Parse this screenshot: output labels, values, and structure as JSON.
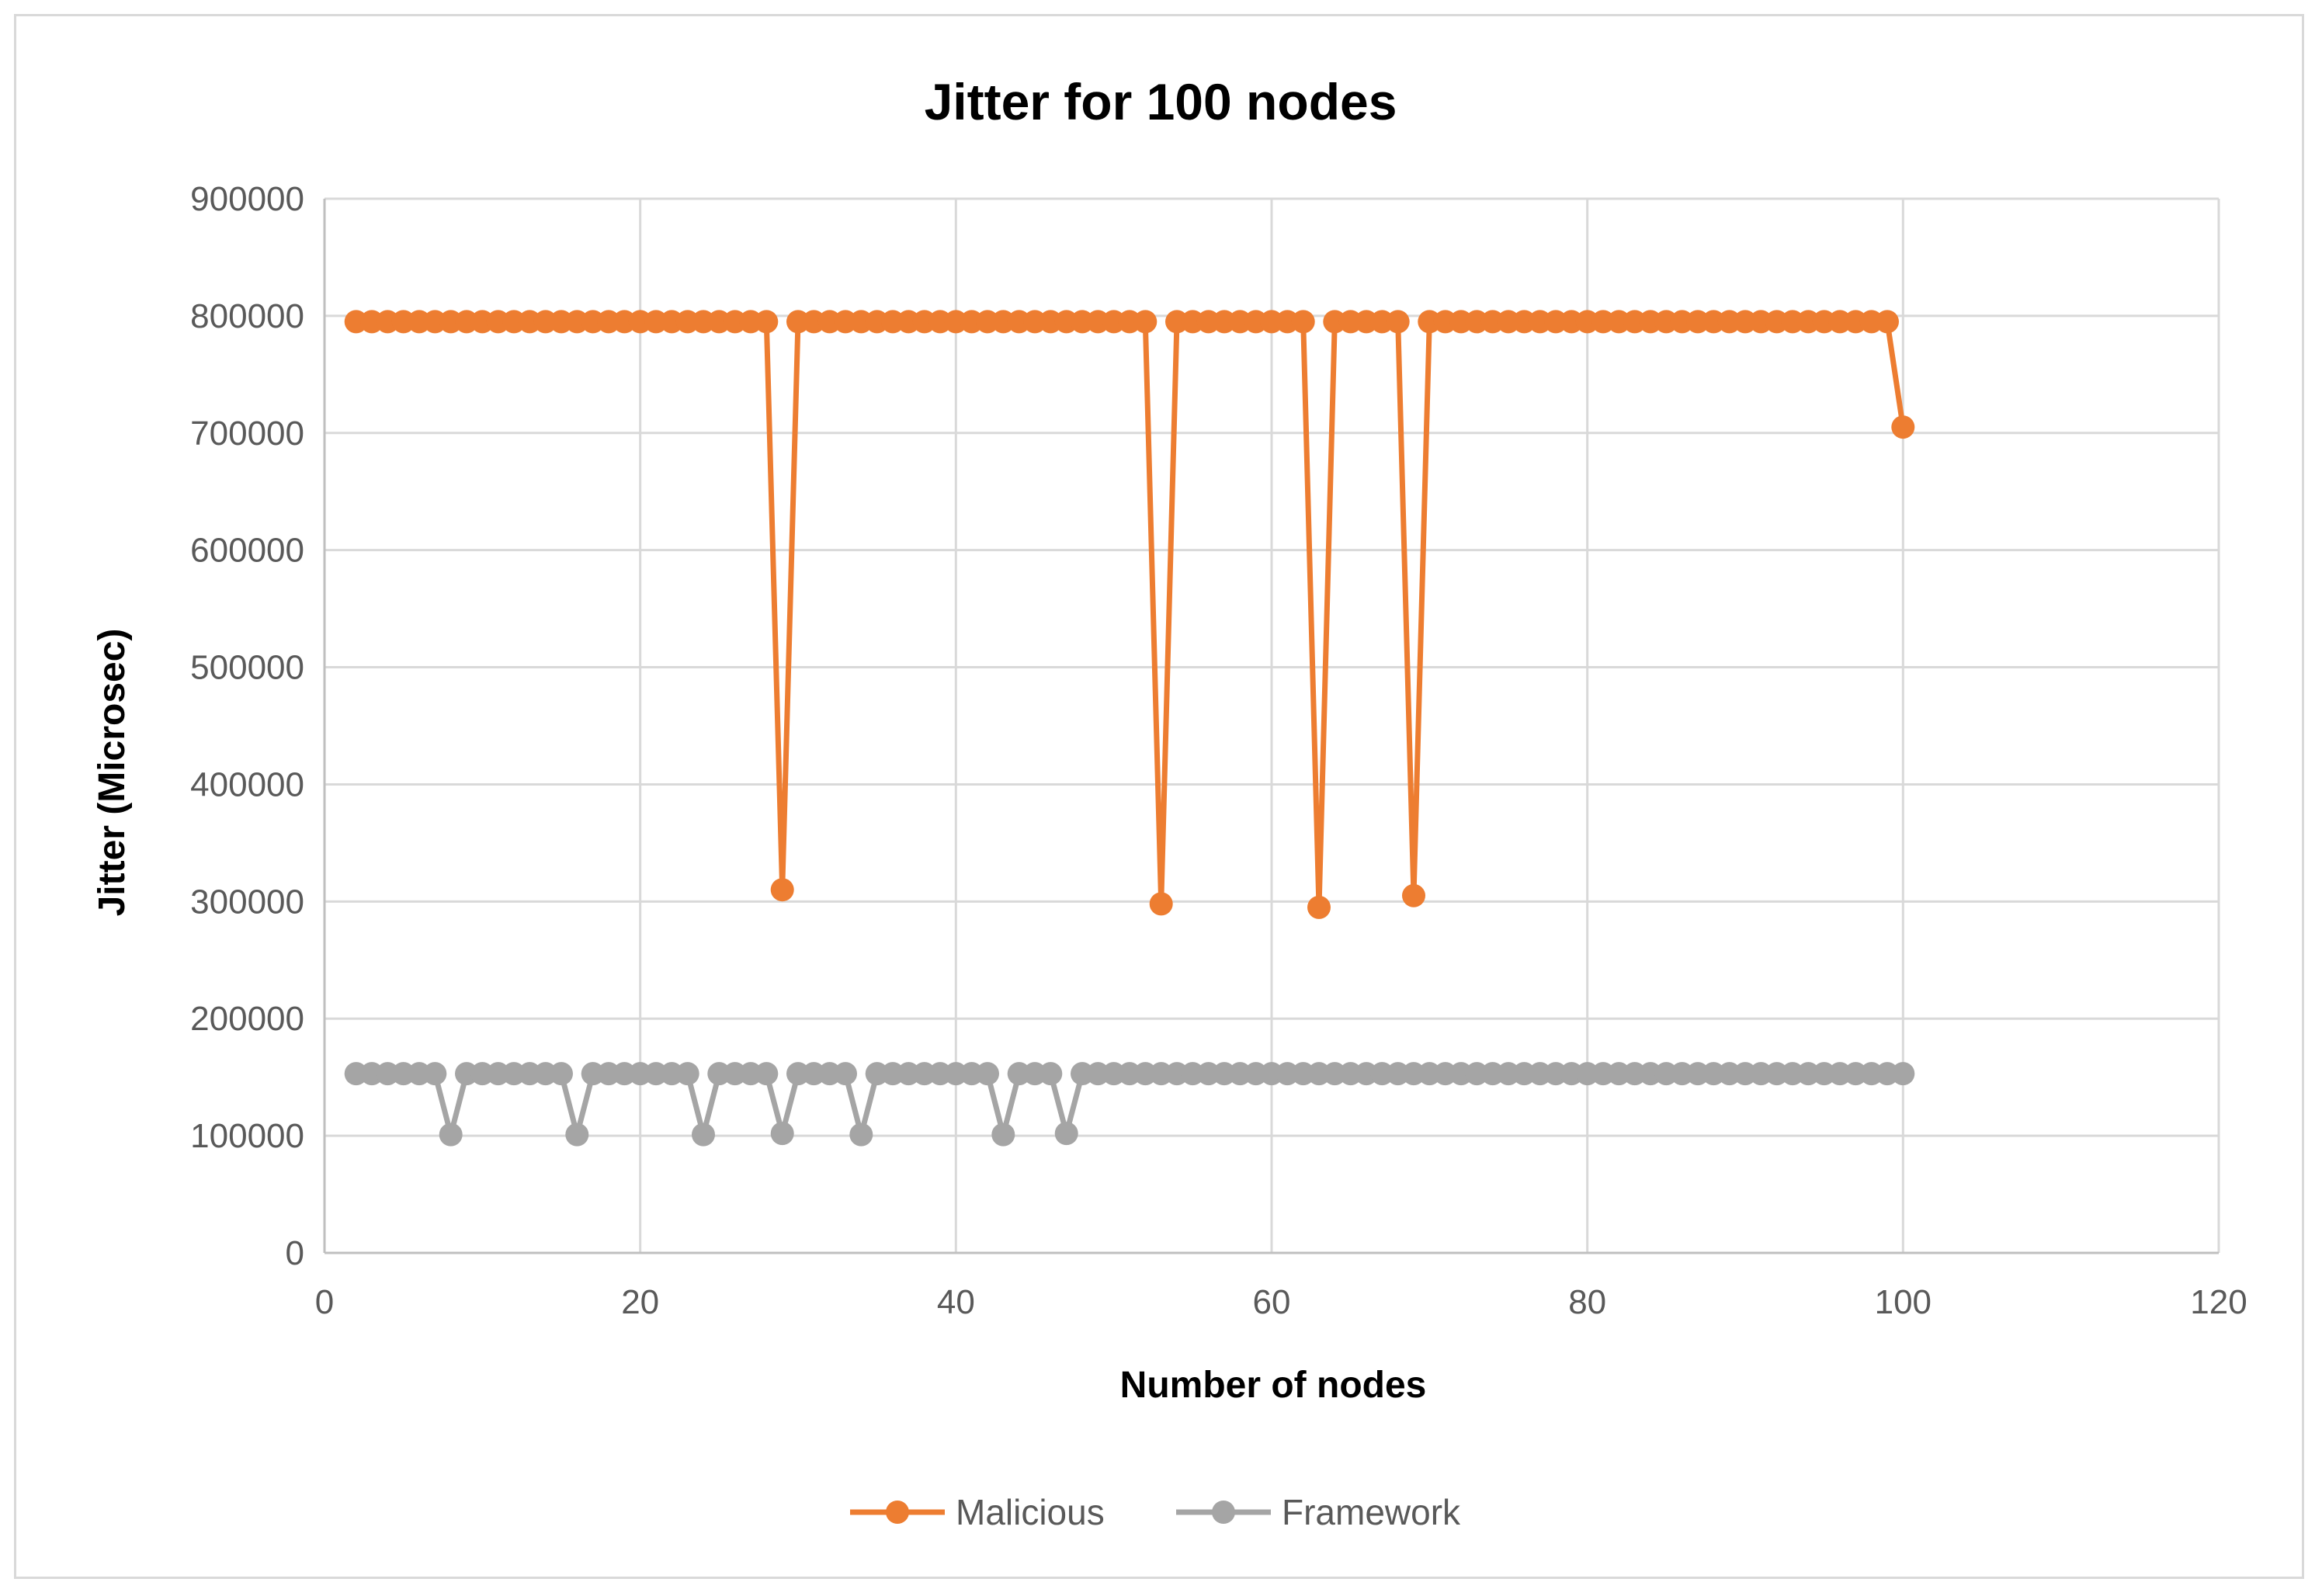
{
  "chart_data": {
    "type": "line",
    "title": "Jitter for 100 nodes",
    "xlabel": "Number of nodes",
    "ylabel": "Jitter (Microsec)",
    "xlim": [
      0,
      120
    ],
    "ylim": [
      0,
      900000
    ],
    "x_ticks": [
      "0",
      "20",
      "40",
      "60",
      "80",
      "100",
      "120"
    ],
    "y_ticks": [
      "0",
      "100000",
      "200000",
      "300000",
      "400000",
      "500000",
      "600000",
      "700000",
      "800000",
      "900000"
    ],
    "grid": true,
    "legend_position": "bottom",
    "x": [
      2,
      3,
      4,
      5,
      6,
      7,
      8,
      9,
      10,
      11,
      12,
      13,
      14,
      15,
      16,
      17,
      18,
      19,
      20,
      21,
      22,
      23,
      24,
      25,
      26,
      27,
      28,
      29,
      30,
      31,
      32,
      33,
      34,
      35,
      36,
      37,
      38,
      39,
      40,
      41,
      42,
      43,
      44,
      45,
      46,
      47,
      48,
      49,
      50,
      51,
      52,
      53,
      54,
      55,
      56,
      57,
      58,
      59,
      60,
      61,
      62,
      63,
      64,
      65,
      66,
      67,
      68,
      69,
      70,
      71,
      72,
      73,
      74,
      75,
      76,
      77,
      78,
      79,
      80,
      81,
      82,
      83,
      84,
      85,
      86,
      87,
      88,
      89,
      90,
      91,
      92,
      93,
      94,
      95,
      96,
      97,
      98,
      99,
      100
    ],
    "series": [
      {
        "name": "Malicious",
        "color": "#ed7d31",
        "values": [
          795000,
          795000,
          795000,
          795000,
          795000,
          795000,
          795000,
          795000,
          795000,
          795000,
          795000,
          795000,
          795000,
          795000,
          795000,
          795000,
          795000,
          795000,
          795000,
          795000,
          795000,
          795000,
          795000,
          795000,
          795000,
          795000,
          795000,
          310000,
          795000,
          795000,
          795000,
          795000,
          795000,
          795000,
          795000,
          795000,
          795000,
          795000,
          795000,
          795000,
          795000,
          795000,
          795000,
          795000,
          795000,
          795000,
          795000,
          795000,
          795000,
          795000,
          795000,
          298000,
          795000,
          795000,
          795000,
          795000,
          795000,
          795000,
          795000,
          795000,
          795000,
          295000,
          795000,
          795000,
          795000,
          795000,
          795000,
          305000,
          795000,
          795000,
          795000,
          795000,
          795000,
          795000,
          795000,
          795000,
          795000,
          795000,
          795000,
          795000,
          795000,
          795000,
          795000,
          795000,
          795000,
          795000,
          795000,
          795000,
          795000,
          795000,
          795000,
          795000,
          795000,
          795000,
          795000,
          795000,
          795000,
          795000,
          705000
        ]
      },
      {
        "name": "Framework",
        "color": "#a5a5a5",
        "values": [
          153000,
          153000,
          153000,
          153000,
          153000,
          153000,
          101000,
          153000,
          153000,
          153000,
          153000,
          153000,
          153000,
          153000,
          101000,
          153000,
          153000,
          153000,
          153000,
          153000,
          153000,
          153000,
          101000,
          153000,
          153000,
          153000,
          153000,
          102000,
          153000,
          153000,
          153000,
          153000,
          101000,
          153000,
          153000,
          153000,
          153000,
          153000,
          153000,
          153000,
          153000,
          101000,
          153000,
          153000,
          153000,
          102000,
          153000,
          153000,
          153000,
          153000,
          153000,
          153000,
          153000,
          153000,
          153000,
          153000,
          153000,
          153000,
          153000,
          153000,
          153000,
          153000,
          153000,
          153000,
          153000,
          153000,
          153000,
          153000,
          153000,
          153000,
          153000,
          153000,
          153000,
          153000,
          153000,
          153000,
          153000,
          153000,
          153000,
          153000,
          153000,
          153000,
          153000,
          153000,
          153000,
          153000,
          153000,
          153000,
          153000,
          153000,
          153000,
          153000,
          153000,
          153000,
          153000,
          153000,
          153000,
          153000,
          153000
        ]
      }
    ]
  }
}
